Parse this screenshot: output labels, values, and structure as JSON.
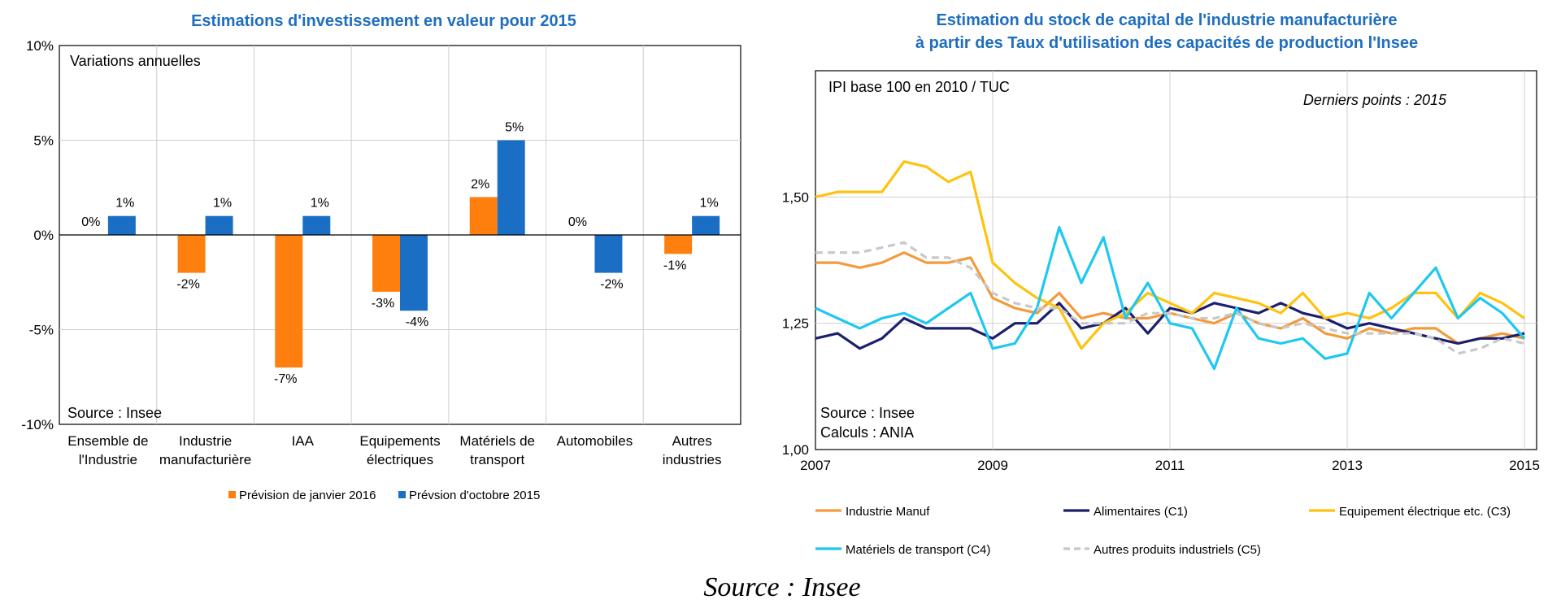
{
  "footer_source": "Source : Insee",
  "chart_data": [
    {
      "type": "bar",
      "title": "Estimations d'investissement en valeur pour 2015",
      "note_top": "Variations annuelles",
      "note_bottom": "Source : Insee",
      "categories": [
        [
          "Ensemble de",
          "l'Industrie"
        ],
        [
          "Industrie",
          "manufacturière"
        ],
        [
          "IAA"
        ],
        [
          "Equipements",
          "électriques"
        ],
        [
          "Matériels de",
          "transport"
        ],
        [
          "Automobiles"
        ],
        [
          "Autres",
          "industries"
        ]
      ],
      "series": [
        {
          "name": "Prévision de janvier 2016",
          "color": "#ff7f0e",
          "values": [
            0,
            -2,
            -7,
            -3,
            2,
            0,
            -1
          ],
          "labels": [
            "0%",
            "-2%",
            "-7%",
            "-3%",
            "2%",
            "0%",
            "-1%"
          ]
        },
        {
          "name": "Prévsion d'octobre 2015",
          "color": "#1a6fc4",
          "values": [
            1,
            1,
            1,
            -4,
            5,
            -2,
            1
          ],
          "labels": [
            "1%",
            "1%",
            "1%",
            "-4%",
            "5%",
            "-2%",
            "1%"
          ]
        }
      ],
      "ylim": [
        -10,
        10
      ],
      "yticks": [
        10,
        5,
        0,
        -5,
        -10
      ],
      "ytick_labels": [
        "10%",
        "5%",
        "0%",
        "-5%",
        "-10%"
      ],
      "legend_position": "bottom"
    },
    {
      "type": "line",
      "title": [
        "Estimation du stock de capital de l'industrie manufacturière",
        "à partir des Taux d'utilisation des capacités de production l'Insee"
      ],
      "note_top": "IPI base 100 en 2010 / TUC",
      "note_top_right": "Derniers points : 2015",
      "note_bottom": [
        "Source : Insee",
        "Calculs : ANIA"
      ],
      "xlim": [
        2007,
        2015
      ],
      "xticks": [
        2007,
        2009,
        2011,
        2013,
        2015
      ],
      "xtick_labels": [
        "2007",
        "2009",
        "2011",
        "2013",
        "2015"
      ],
      "ylim": [
        1.0,
        1.75
      ],
      "yticks": [
        1.0,
        1.25,
        1.5
      ],
      "ytick_labels": [
        "1,00",
        "1,25",
        "1,50"
      ],
      "x": [
        2007.0,
        2007.25,
        2007.5,
        2007.75,
        2008.0,
        2008.25,
        2008.5,
        2008.75,
        2009.0,
        2009.25,
        2009.5,
        2009.75,
        2010.0,
        2010.25,
        2010.5,
        2010.75,
        2011.0,
        2011.25,
        2011.5,
        2011.75,
        2012.0,
        2012.25,
        2012.5,
        2012.75,
        2013.0,
        2013.25,
        2013.5,
        2013.75,
        2014.0,
        2014.25,
        2014.5,
        2014.75,
        2015.0
      ],
      "series": [
        {
          "name": "Industrie Manuf",
          "color": "#f39a3d",
          "dash": "solid",
          "values": [
            1.37,
            1.37,
            1.36,
            1.37,
            1.39,
            1.37,
            1.37,
            1.38,
            1.3,
            1.28,
            1.27,
            1.31,
            1.26,
            1.27,
            1.26,
            1.26,
            1.27,
            1.26,
            1.25,
            1.27,
            1.25,
            1.24,
            1.26,
            1.23,
            1.22,
            1.24,
            1.23,
            1.24,
            1.24,
            1.21,
            1.22,
            1.23,
            1.22
          ]
        },
        {
          "name": "Alimentaires (C1)",
          "color": "#1b1f6e",
          "dash": "solid",
          "values": [
            1.22,
            1.23,
            1.2,
            1.22,
            1.26,
            1.24,
            1.24,
            1.24,
            1.22,
            1.25,
            1.25,
            1.29,
            1.24,
            1.25,
            1.28,
            1.23,
            1.28,
            1.27,
            1.29,
            1.28,
            1.27,
            1.29,
            1.27,
            1.26,
            1.24,
            1.25,
            1.24,
            1.23,
            1.22,
            1.21,
            1.22,
            1.22,
            1.23
          ]
        },
        {
          "name": "Equipement électrique etc. (C3)",
          "color": "#ffc20e",
          "dash": "solid",
          "values": [
            1.5,
            1.51,
            1.51,
            1.51,
            1.57,
            1.56,
            1.53,
            1.55,
            1.37,
            1.33,
            1.3,
            1.28,
            1.2,
            1.25,
            1.27,
            1.31,
            1.29,
            1.27,
            1.31,
            1.3,
            1.29,
            1.27,
            1.31,
            1.26,
            1.27,
            1.26,
            1.28,
            1.31,
            1.31,
            1.26,
            1.31,
            1.29,
            1.26
          ]
        },
        {
          "name": "Matériels de transport (C4)",
          "color": "#1ec8f0",
          "dash": "solid",
          "values": [
            1.28,
            1.26,
            1.24,
            1.26,
            1.27,
            1.25,
            1.28,
            1.31,
            1.2,
            1.21,
            1.28,
            1.44,
            1.33,
            1.42,
            1.26,
            1.33,
            1.25,
            1.24,
            1.16,
            1.28,
            1.22,
            1.21,
            1.22,
            1.18,
            1.19,
            1.31,
            1.26,
            1.31,
            1.36,
            1.26,
            1.3,
            1.27,
            1.22
          ]
        },
        {
          "name": "Autres produits industriels (C5)",
          "color": "#c8c8c8",
          "dash": "dashed",
          "values": [
            1.39,
            1.39,
            1.39,
            1.4,
            1.41,
            1.38,
            1.38,
            1.36,
            1.31,
            1.29,
            1.28,
            1.28,
            1.25,
            1.25,
            1.25,
            1.27,
            1.27,
            1.26,
            1.26,
            1.27,
            1.25,
            1.24,
            1.25,
            1.24,
            1.23,
            1.23,
            1.23,
            1.23,
            1.22,
            1.19,
            1.2,
            1.22,
            1.21
          ]
        }
      ],
      "legend_position": "bottom"
    }
  ]
}
